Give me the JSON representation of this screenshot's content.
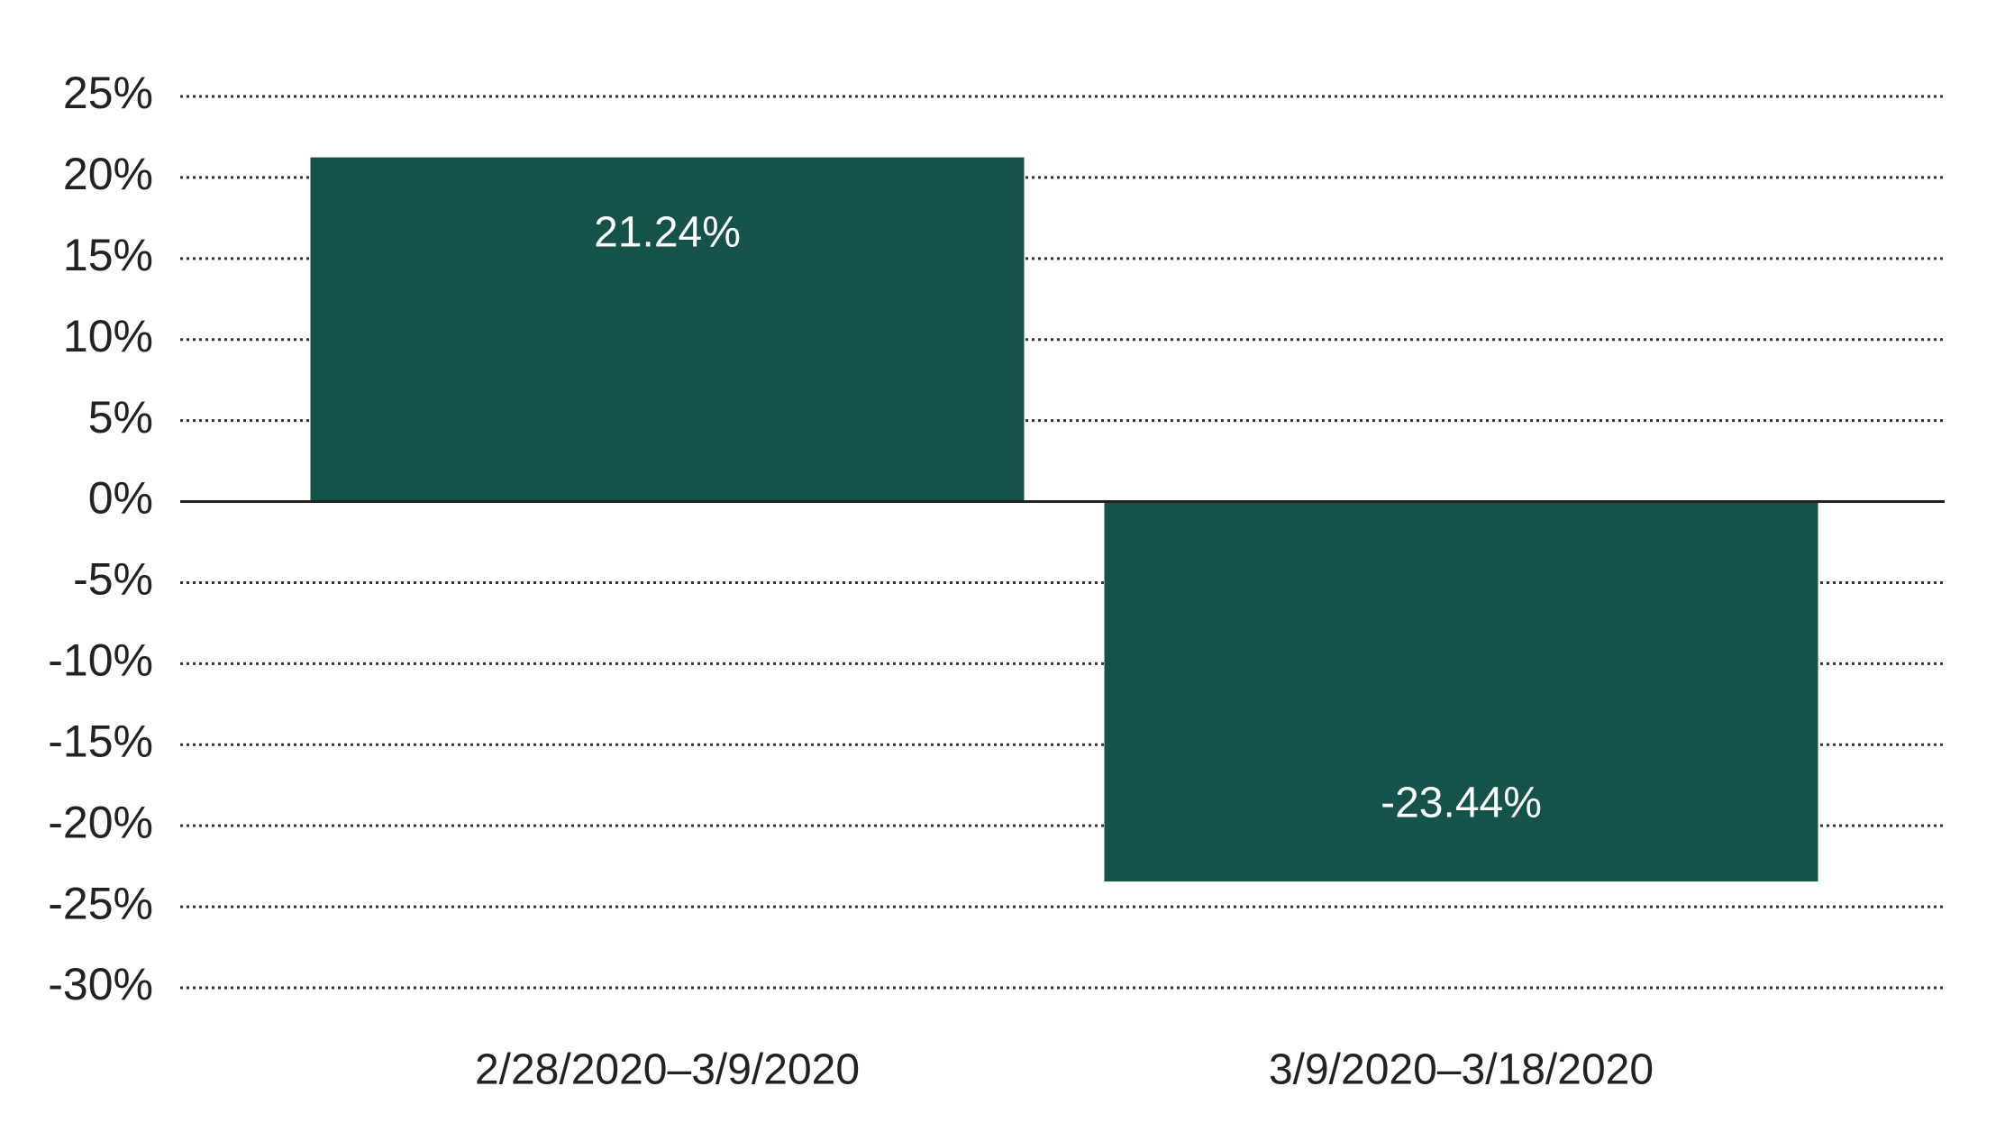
{
  "chart_data": {
    "type": "bar",
    "categories": [
      "2/28/2020–3/9/2020",
      "3/9/2020–3/18/2020"
    ],
    "values": [
      21.24,
      -23.44
    ],
    "value_labels": [
      "21.24%",
      "-23.44%"
    ],
    "color": "#14524a",
    "ylim": [
      -30,
      25
    ],
    "yticks": [
      {
        "value": -30,
        "label": "-30%"
      },
      {
        "value": -25,
        "label": "-25%"
      },
      {
        "value": -20,
        "label": "-20%"
      },
      {
        "value": -15,
        "label": "-15%"
      },
      {
        "value": -10,
        "label": "-10%"
      },
      {
        "value": -5,
        "label": "-5%"
      },
      {
        "value": 0,
        "label": "0%"
      },
      {
        "value": 5,
        "label": "5%"
      },
      {
        "value": 10,
        "label": "10%"
      },
      {
        "value": 15,
        "label": "15%"
      },
      {
        "value": 20,
        "label": "20%"
      },
      {
        "value": 25,
        "label": "25%"
      }
    ],
    "grid": true
  }
}
